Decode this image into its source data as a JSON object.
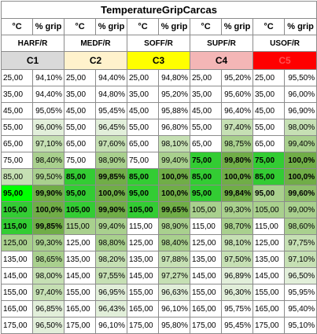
{
  "title": "TemperatureGripCarcas",
  "headers": {
    "temp": "°C",
    "grip": "% grip"
  },
  "compounds": [
    {
      "name": "HARF/R",
      "code": "C1",
      "code_bg": "#d9d9d9",
      "code_fg": "#000000"
    },
    {
      "name": "MEDF/R",
      "code": "C2",
      "code_bg": "#fff2cc",
      "code_fg": "#000000"
    },
    {
      "name": "SOFF/R",
      "code": "C3",
      "code_bg": "#ffff00",
      "code_fg": "#000000"
    },
    {
      "name": "SUPF/R",
      "code": "C4",
      "code_bg": "#f4b6b6",
      "code_fg": "#000000"
    },
    {
      "name": "USOF/R",
      "code": "C5",
      "code_bg": "#ff0000",
      "code_fg": "#ff5050"
    }
  ],
  "rows": [
    {
      "cells": [
        {
          "t": "25,00",
          "g": "94,10%",
          "tb": "#ffffff",
          "gb": "#ffffff"
        },
        {
          "t": "25,00",
          "g": "94,40%",
          "tb": "#ffffff",
          "gb": "#ffffff"
        },
        {
          "t": "25,00",
          "g": "94,80%",
          "tb": "#ffffff",
          "gb": "#ffffff"
        },
        {
          "t": "25,00",
          "g": "95,20%",
          "tb": "#ffffff",
          "gb": "#ffffff"
        },
        {
          "t": "25,00",
          "g": "95,50%",
          "tb": "#ffffff",
          "gb": "#ffffff"
        }
      ]
    },
    {
      "cells": [
        {
          "t": "35,00",
          "g": "94,40%",
          "tb": "#ffffff",
          "gb": "#ffffff"
        },
        {
          "t": "35,00",
          "g": "94,80%",
          "tb": "#ffffff",
          "gb": "#ffffff"
        },
        {
          "t": "35,00",
          "g": "95,20%",
          "tb": "#ffffff",
          "gb": "#ffffff"
        },
        {
          "t": "35,00",
          "g": "95,60%",
          "tb": "#ffffff",
          "gb": "#ffffff"
        },
        {
          "t": "35,00",
          "g": "96,00%",
          "tb": "#ffffff",
          "gb": "#ffffff"
        }
      ]
    },
    {
      "cells": [
        {
          "t": "45,00",
          "g": "95,05%",
          "tb": "#ffffff",
          "gb": "#ffffff"
        },
        {
          "t": "45,00",
          "g": "95,45%",
          "tb": "#ffffff",
          "gb": "#ffffff"
        },
        {
          "t": "45,00",
          "g": "95,88%",
          "tb": "#ffffff",
          "gb": "#ffffff"
        },
        {
          "t": "45,00",
          "g": "96,40%",
          "tb": "#ffffff",
          "gb": "#ffffff"
        },
        {
          "t": "45,00",
          "g": "96,90%",
          "tb": "#ffffff",
          "gb": "#ffffff"
        }
      ]
    },
    {
      "cells": [
        {
          "t": "55,00",
          "g": "96,00%",
          "tb": "#ffffff",
          "gb": "#e2efda"
        },
        {
          "t": "55,00",
          "g": "96,45%",
          "tb": "#ffffff",
          "gb": "#e2efda"
        },
        {
          "t": "55,00",
          "g": "96,80%",
          "tb": "#ffffff",
          "gb": "#ffffff"
        },
        {
          "t": "55,00",
          "g": "97,40%",
          "tb": "#ffffff",
          "gb": "#c6e0b4"
        },
        {
          "t": "55,00",
          "g": "98,00%",
          "tb": "#ffffff",
          "gb": "#c6e0b4"
        }
      ]
    },
    {
      "cells": [
        {
          "t": "65,00",
          "g": "97,10%",
          "tb": "#ffffff",
          "gb": "#c6e0b4"
        },
        {
          "t": "65,00",
          "g": "97,60%",
          "tb": "#ffffff",
          "gb": "#c6e0b4"
        },
        {
          "t": "65,00",
          "g": "98,10%",
          "tb": "#ffffff",
          "gb": "#c6e0b4"
        },
        {
          "t": "65,00",
          "g": "98,75%",
          "tb": "#ffffff",
          "gb": "#a9d08e"
        },
        {
          "t": "65,00",
          "g": "99,40%",
          "tb": "#ffffff",
          "gb": "#a9d08e"
        }
      ]
    },
    {
      "cells": [
        {
          "t": "75,00",
          "g": "98,40%",
          "tb": "#ffffff",
          "gb": "#a9d08e"
        },
        {
          "t": "75,00",
          "g": "98,90%",
          "tb": "#ffffff",
          "gb": "#a9d08e"
        },
        {
          "t": "75,00",
          "g": "99,40%",
          "tb": "#ffffff",
          "gb": "#a9d08e"
        },
        {
          "t": "75,00",
          "g": "99,80%",
          "tb": "#33cc33",
          "gb": "#70ad47",
          "hl": true
        },
        {
          "t": "75,00",
          "g": "100,0%",
          "tb": "#33cc33",
          "gb": "#70ad47",
          "hl": true
        }
      ]
    },
    {
      "cells": [
        {
          "t": "85,00",
          "g": "99,50%",
          "tb": "#c6e0b4",
          "gb": "#a9d08e"
        },
        {
          "t": "85,00",
          "g": "99,85%",
          "tb": "#33cc33",
          "gb": "#70ad47",
          "hl": true
        },
        {
          "t": "85,00",
          "g": "100,0%",
          "tb": "#33cc33",
          "gb": "#70ad47",
          "hl": true
        },
        {
          "t": "85,00",
          "g": "100,0%",
          "tb": "#33cc33",
          "gb": "#70ad47",
          "hl": true
        },
        {
          "t": "85,00",
          "g": "100,0%",
          "tb": "#33cc33",
          "gb": "#70ad47",
          "hl": true
        }
      ]
    },
    {
      "cells": [
        {
          "t": "95,00",
          "g": "99,90%",
          "tb": "#00ff00",
          "gb": "#70ad47",
          "hl": true
        },
        {
          "t": "95,00",
          "g": "100,0%",
          "tb": "#33cc33",
          "gb": "#70ad47",
          "hl": true
        },
        {
          "t": "95,00",
          "g": "100,0%",
          "tb": "#33cc33",
          "gb": "#70ad47",
          "hl": true
        },
        {
          "t": "95,00",
          "g": "99,84%",
          "tb": "#33cc33",
          "gb": "#70ad47",
          "hl": true
        },
        {
          "t": "95,00",
          "g": "99,60%",
          "tb": "#a9d08e",
          "gb": "#8fbf6c",
          "hl": true
        }
      ]
    },
    {
      "cells": [
        {
          "t": "105,00",
          "g": "100,0%",
          "tb": "#33cc33",
          "gb": "#70ad47",
          "hl": true
        },
        {
          "t": "105,00",
          "g": "99,90%",
          "tb": "#33cc33",
          "gb": "#70ad47",
          "hl": true
        },
        {
          "t": "105,00",
          "g": "99,65%",
          "tb": "#33cc33",
          "gb": "#70ad47",
          "hl": true
        },
        {
          "t": "105,00",
          "g": "99,30%",
          "tb": "#a9d08e",
          "gb": "#a9d08e"
        },
        {
          "t": "105,00",
          "g": "99,00%",
          "tb": "#a9d08e",
          "gb": "#a9d08e"
        }
      ]
    },
    {
      "cells": [
        {
          "t": "115,00",
          "g": "99,85%",
          "tb": "#33cc33",
          "gb": "#70ad47",
          "hl": true
        },
        {
          "t": "115,00",
          "g": "99,40%",
          "tb": "#a9d08e",
          "gb": "#a9d08e"
        },
        {
          "t": "115,00",
          "g": "98,90%",
          "tb": "#ffffff",
          "gb": "#a9d08e"
        },
        {
          "t": "115,00",
          "g": "98,70%",
          "tb": "#ffffff",
          "gb": "#a9d08e"
        },
        {
          "t": "115,00",
          "g": "98,60%",
          "tb": "#ffffff",
          "gb": "#a9d08e"
        }
      ]
    },
    {
      "cells": [
        {
          "t": "125,00",
          "g": "99,30%",
          "tb": "#a9d08e",
          "gb": "#a9d08e"
        },
        {
          "t": "125,00",
          "g": "98,80%",
          "tb": "#ffffff",
          "gb": "#a9d08e"
        },
        {
          "t": "125,00",
          "g": "98,40%",
          "tb": "#ffffff",
          "gb": "#a9d08e"
        },
        {
          "t": "125,00",
          "g": "98,10%",
          "tb": "#ffffff",
          "gb": "#c6e0b4"
        },
        {
          "t": "125,00",
          "g": "97,75%",
          "tb": "#ffffff",
          "gb": "#c6e0b4"
        }
      ]
    },
    {
      "cells": [
        {
          "t": "135,00",
          "g": "98,65%",
          "tb": "#ffffff",
          "gb": "#a9d08e"
        },
        {
          "t": "135,00",
          "g": "98,20%",
          "tb": "#ffffff",
          "gb": "#c6e0b4"
        },
        {
          "t": "135,00",
          "g": "97,88%",
          "tb": "#ffffff",
          "gb": "#c6e0b4"
        },
        {
          "t": "135,00",
          "g": "97,50%",
          "tb": "#ffffff",
          "gb": "#c6e0b4"
        },
        {
          "t": "135,00",
          "g": "97,10%",
          "tb": "#ffffff",
          "gb": "#c6e0b4"
        }
      ]
    },
    {
      "cells": [
        {
          "t": "145,00",
          "g": "98,00%",
          "tb": "#ffffff",
          "gb": "#c6e0b4"
        },
        {
          "t": "145,00",
          "g": "97,55%",
          "tb": "#ffffff",
          "gb": "#c6e0b4"
        },
        {
          "t": "145,00",
          "g": "97,27%",
          "tb": "#ffffff",
          "gb": "#c6e0b4"
        },
        {
          "t": "145,00",
          "g": "96,89%",
          "tb": "#ffffff",
          "gb": "#e2efda"
        },
        {
          "t": "145,00",
          "g": "96,50%",
          "tb": "#ffffff",
          "gb": "#e2efda"
        }
      ]
    },
    {
      "cells": [
        {
          "t": "155,00",
          "g": "97,40%",
          "tb": "#ffffff",
          "gb": "#c6e0b4"
        },
        {
          "t": "155,00",
          "g": "96,95%",
          "tb": "#ffffff",
          "gb": "#e2efda"
        },
        {
          "t": "155,00",
          "g": "96,63%",
          "tb": "#ffffff",
          "gb": "#e2efda"
        },
        {
          "t": "155,00",
          "g": "96,30%",
          "tb": "#ffffff",
          "gb": "#e2efda"
        },
        {
          "t": "155,00",
          "g": "95,95%",
          "tb": "#ffffff",
          "gb": "#ffffff"
        }
      ]
    },
    {
      "cells": [
        {
          "t": "165,00",
          "g": "96,85%",
          "tb": "#ffffff",
          "gb": "#e2efda"
        },
        {
          "t": "165,00",
          "g": "96,43%",
          "tb": "#ffffff",
          "gb": "#e2efda"
        },
        {
          "t": "165,00",
          "g": "96,10%",
          "tb": "#ffffff",
          "gb": "#ffffff"
        },
        {
          "t": "165,00",
          "g": "95,75%",
          "tb": "#ffffff",
          "gb": "#ffffff"
        },
        {
          "t": "165,00",
          "g": "95,40%",
          "tb": "#ffffff",
          "gb": "#ffffff"
        }
      ]
    },
    {
      "cells": [
        {
          "t": "175,00",
          "g": "96,50%",
          "tb": "#ffffff",
          "gb": "#e2efda"
        },
        {
          "t": "175,00",
          "g": "96,10%",
          "tb": "#ffffff",
          "gb": "#ffffff"
        },
        {
          "t": "175,00",
          "g": "95,80%",
          "tb": "#ffffff",
          "gb": "#ffffff"
        },
        {
          "t": "175,00",
          "g": "95,45%",
          "tb": "#ffffff",
          "gb": "#ffffff"
        },
        {
          "t": "175,00",
          "g": "95,10%",
          "tb": "#ffffff",
          "gb": "#ffffff"
        }
      ]
    }
  ]
}
